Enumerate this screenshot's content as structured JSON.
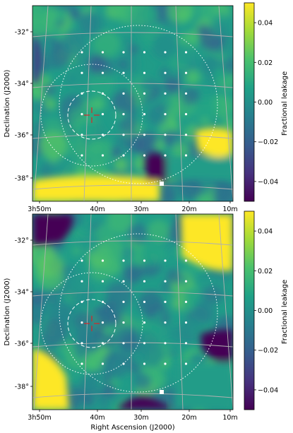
{
  "colors": {
    "viridis": [
      "#440154",
      "#46327e",
      "#365c8d",
      "#277f8e",
      "#1fa187",
      "#4ac16d",
      "#a0da39",
      "#fde725"
    ],
    "beam_marker": "#d62728",
    "grid": "#b0b0b0",
    "dots": "#ffffff"
  },
  "chart_data": [
    {
      "type": "heatmap",
      "panel": "top",
      "colormap": "viridis",
      "ylabel": "Declination (J2000)",
      "xlabel": "",
      "y_ticks": [
        "-32°",
        "-34°",
        "-36°",
        "-38°"
      ],
      "x_ticks": [
        "3h50m",
        "40m",
        "30m",
        "20m",
        "10m"
      ],
      "colorbar": {
        "label": "Fractional leakage",
        "range": [
          -0.05,
          0.05
        ],
        "ticks": [
          "0.04",
          "0.02",
          "0.00",
          "−0.02",
          "−0.04"
        ]
      },
      "beam_grid": {
        "rows": 6,
        "cols": 6
      }
    },
    {
      "type": "heatmap",
      "panel": "bottom",
      "colormap": "viridis",
      "ylabel": "Declination (J2000)",
      "xlabel": "Right Ascension (J2000)",
      "y_ticks": [
        "-32°",
        "-34°",
        "-36°",
        "-38°"
      ],
      "x_ticks": [
        "3h50m",
        "40m",
        "30m",
        "20m",
        "10m"
      ],
      "colorbar": {
        "label": "Fractional leakage",
        "range": [
          -0.05,
          0.05
        ],
        "ticks": [
          "0.04",
          "0.02",
          "0.00",
          "−0.02",
          "−0.04"
        ]
      },
      "beam_grid": {
        "rows": 6,
        "cols": 6
      }
    }
  ]
}
